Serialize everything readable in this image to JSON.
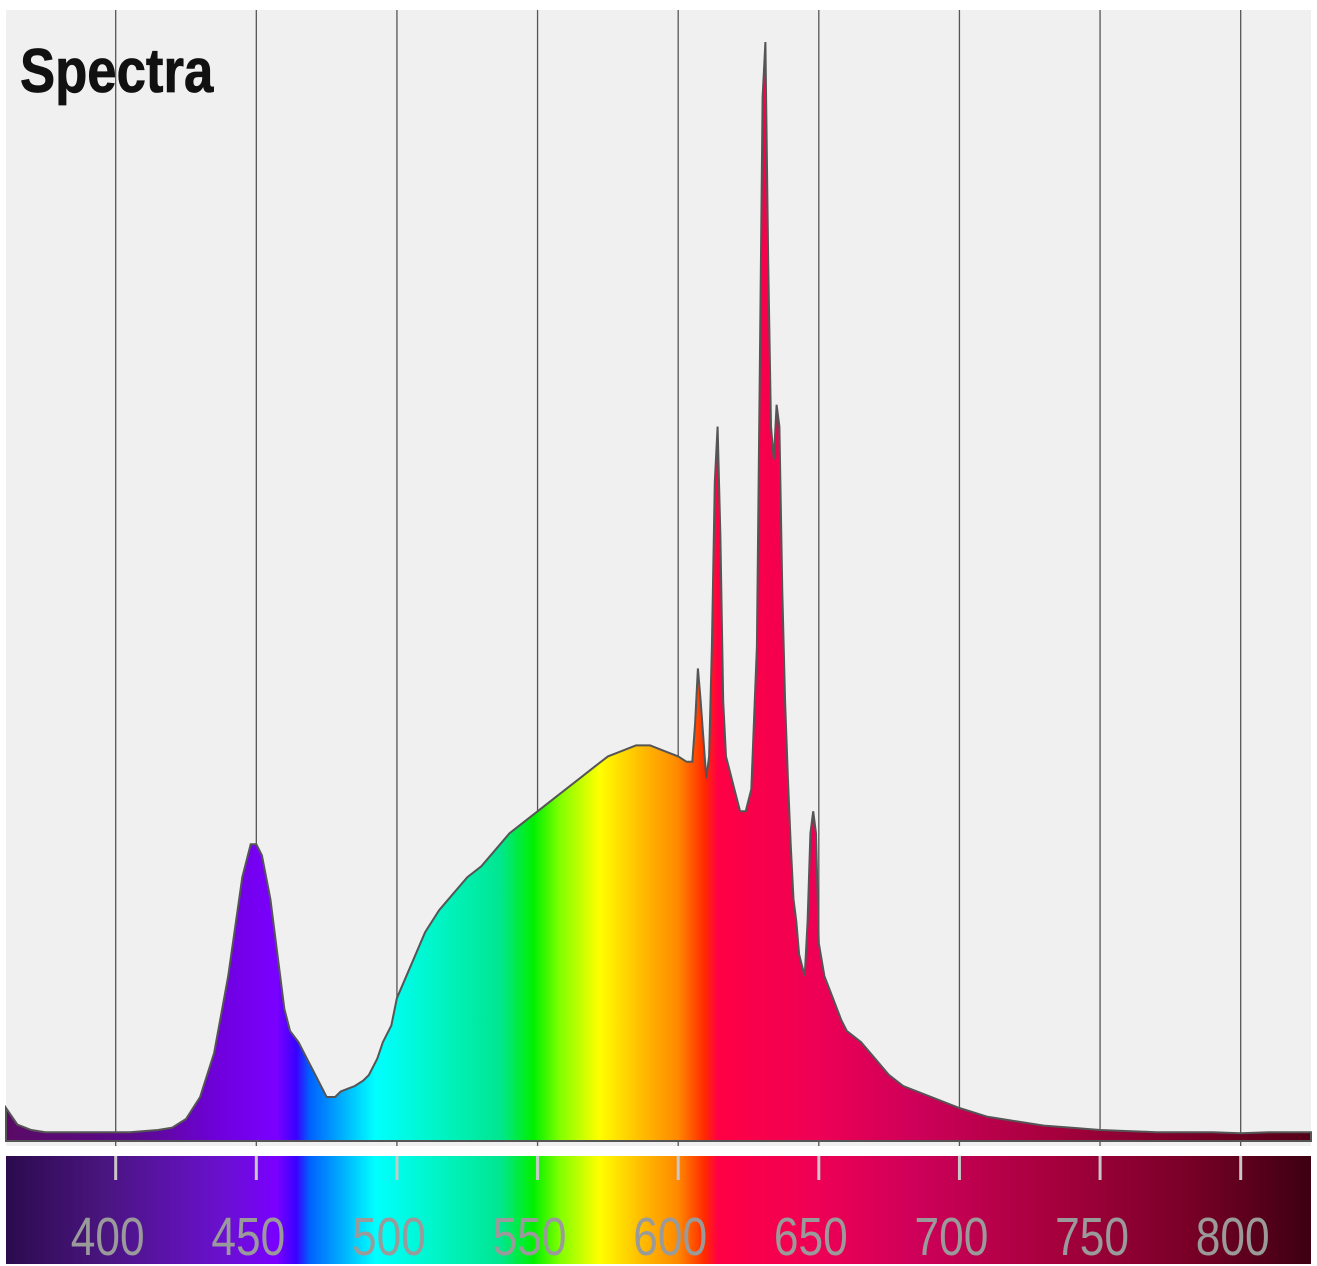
{
  "chart_data": {
    "type": "area",
    "title": "Spectra",
    "xlabel": "",
    "ylabel": "",
    "xlim": [
      361,
      825
    ],
    "ylim": [
      0,
      1.0
    ],
    "grid": "vertical",
    "x_ticks": [
      400,
      450,
      500,
      550,
      600,
      650,
      700,
      750,
      800
    ],
    "x_tick_labels": [
      "400",
      "450",
      "500",
      "550",
      "600",
      "650",
      "700",
      "750",
      "800"
    ],
    "fill": "wavelength-spectrum-gradient",
    "series": [
      {
        "x": [
          361,
          365,
          370,
          375,
          380,
          385,
          390,
          395,
          400,
          405,
          410,
          415,
          420,
          425,
          430,
          435,
          440,
          445,
          448,
          450,
          452,
          455,
          458,
          460,
          462,
          465,
          468,
          470,
          473,
          475,
          478,
          480,
          483,
          485,
          488,
          490,
          493,
          495,
          498,
          500,
          505,
          510,
          515,
          520,
          525,
          530,
          535,
          540,
          545,
          550,
          555,
          560,
          565,
          570,
          575,
          580,
          585,
          590,
          595,
          600,
          603,
          605,
          606,
          607,
          608,
          610,
          611,
          612,
          613,
          614,
          615,
          616,
          617,
          618,
          620,
          622,
          624,
          626,
          628,
          629,
          630,
          631,
          632,
          633,
          634,
          635,
          636,
          637,
          638,
          639,
          640,
          641,
          642,
          643,
          644,
          645,
          646,
          647,
          648,
          649,
          650,
          652,
          655,
          658,
          660,
          665,
          670,
          675,
          680,
          690,
          700,
          710,
          720,
          730,
          740,
          750,
          760,
          770,
          780,
          790,
          800,
          810,
          820,
          825
        ],
        "y": [
          0.03,
          0.015,
          0.01,
          0.008,
          0.008,
          0.008,
          0.008,
          0.008,
          0.008,
          0.008,
          0.009,
          0.01,
          0.012,
          0.02,
          0.04,
          0.08,
          0.15,
          0.24,
          0.27,
          0.27,
          0.26,
          0.22,
          0.16,
          0.12,
          0.1,
          0.09,
          0.075,
          0.065,
          0.05,
          0.04,
          0.04,
          0.045,
          0.048,
          0.05,
          0.055,
          0.06,
          0.075,
          0.09,
          0.105,
          0.13,
          0.16,
          0.19,
          0.21,
          0.225,
          0.24,
          0.25,
          0.265,
          0.28,
          0.29,
          0.3,
          0.31,
          0.32,
          0.33,
          0.34,
          0.35,
          0.355,
          0.36,
          0.36,
          0.355,
          0.35,
          0.345,
          0.345,
          0.38,
          0.43,
          0.4,
          0.33,
          0.35,
          0.45,
          0.6,
          0.65,
          0.55,
          0.4,
          0.35,
          0.34,
          0.32,
          0.3,
          0.3,
          0.32,
          0.45,
          0.7,
          0.95,
          1.0,
          0.8,
          0.65,
          0.62,
          0.67,
          0.65,
          0.5,
          0.4,
          0.33,
          0.27,
          0.22,
          0.2,
          0.17,
          0.16,
          0.15,
          0.2,
          0.28,
          0.3,
          0.28,
          0.18,
          0.15,
          0.13,
          0.11,
          0.1,
          0.09,
          0.075,
          0.06,
          0.05,
          0.04,
          0.03,
          0.022,
          0.018,
          0.014,
          0.012,
          0.01,
          0.009,
          0.008,
          0.008,
          0.008,
          0.007,
          0.008,
          0.008,
          0.008
        ]
      }
    ]
  }
}
